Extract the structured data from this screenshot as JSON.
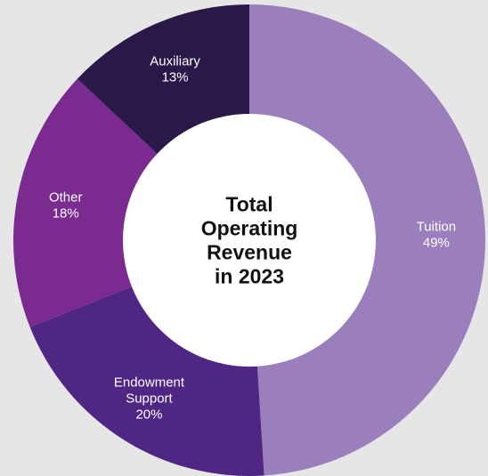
{
  "chart_data": {
    "type": "pie",
    "donut": true,
    "center_label_lines": [
      "Total",
      "Operating",
      "Revenue",
      "in 2023"
    ],
    "slices": [
      {
        "name_lines": [
          "Tuition"
        ],
        "value": 49,
        "label": "49%",
        "color": "#9b7fbd"
      },
      {
        "name_lines": [
          "Endowment",
          "Support"
        ],
        "value": 20,
        "label": "20%",
        "color": "#4f2683"
      },
      {
        "name_lines": [
          "Other"
        ],
        "value": 18,
        "label": "18%",
        "color": "#7b2a90"
      },
      {
        "name_lines": [
          "Auxiliary"
        ],
        "value": 13,
        "label": "13%",
        "color": "#2a1848"
      }
    ],
    "start_at": "top",
    "direction": "clockwise",
    "legend": "none"
  }
}
